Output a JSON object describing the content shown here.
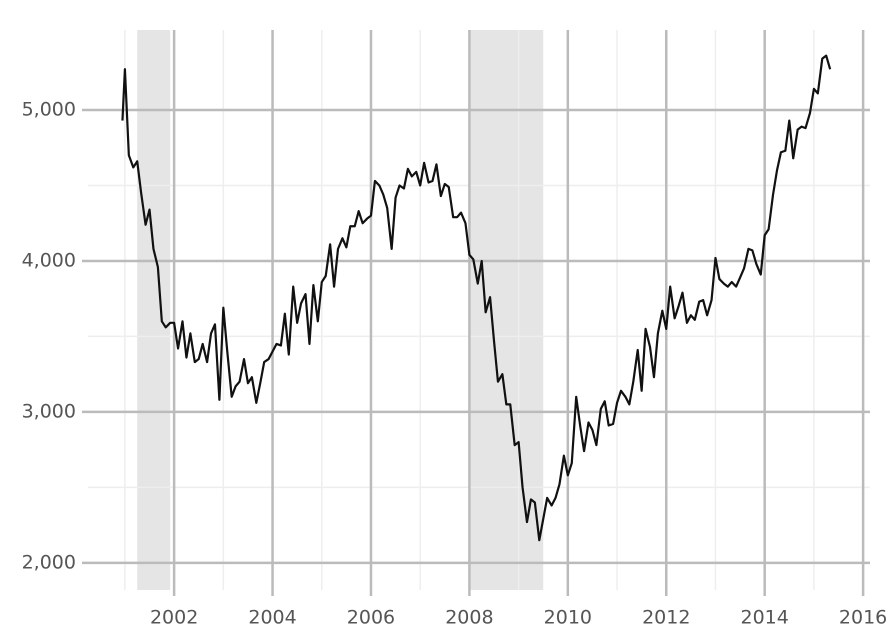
{
  "chart_data": {
    "type": "line",
    "x": [
      2000.95,
      2001.0,
      2001.08,
      2001.17,
      2001.25,
      2001.33,
      2001.42,
      2001.5,
      2001.58,
      2001.67,
      2001.75,
      2001.83,
      2001.92,
      2002.0,
      2002.08,
      2002.17,
      2002.25,
      2002.33,
      2002.42,
      2002.5,
      2002.58,
      2002.67,
      2002.75,
      2002.83,
      2002.92,
      2003.0,
      2003.08,
      2003.17,
      2003.25,
      2003.33,
      2003.42,
      2003.5,
      2003.58,
      2003.67,
      2003.75,
      2003.83,
      2003.92,
      2004.0,
      2004.08,
      2004.17,
      2004.25,
      2004.33,
      2004.42,
      2004.5,
      2004.58,
      2004.67,
      2004.75,
      2004.83,
      2004.92,
      2005.0,
      2005.08,
      2005.17,
      2005.25,
      2005.33,
      2005.42,
      2005.5,
      2005.58,
      2005.67,
      2005.75,
      2005.83,
      2005.92,
      2006.0,
      2006.08,
      2006.17,
      2006.25,
      2006.33,
      2006.42,
      2006.5,
      2006.58,
      2006.67,
      2006.75,
      2006.83,
      2006.92,
      2007.0,
      2007.08,
      2007.17,
      2007.25,
      2007.33,
      2007.42,
      2007.5,
      2007.58,
      2007.67,
      2007.75,
      2007.83,
      2007.92,
      2008.0,
      2008.08,
      2008.17,
      2008.25,
      2008.33,
      2008.42,
      2008.5,
      2008.58,
      2008.67,
      2008.75,
      2008.83,
      2008.92,
      2009.0,
      2009.08,
      2009.17,
      2009.25,
      2009.33,
      2009.42,
      2009.5,
      2009.58,
      2009.67,
      2009.75,
      2009.83,
      2009.92,
      2010.0,
      2010.08,
      2010.17,
      2010.25,
      2010.33,
      2010.42,
      2010.5,
      2010.58,
      2010.67,
      2010.75,
      2010.83,
      2010.92,
      2011.0,
      2011.08,
      2011.17,
      2011.25,
      2011.33,
      2011.42,
      2011.5,
      2011.58,
      2011.67,
      2011.75,
      2011.83,
      2011.92,
      2012.0,
      2012.08,
      2012.17,
      2012.25,
      2012.33,
      2012.42,
      2012.5,
      2012.58,
      2012.67,
      2012.75,
      2012.83,
      2012.92,
      2013.0,
      2013.08,
      2013.17,
      2013.25,
      2013.33,
      2013.42,
      2013.5,
      2013.58,
      2013.67,
      2013.75,
      2013.83,
      2013.92,
      2014.0,
      2014.08,
      2014.17,
      2014.25,
      2014.33,
      2014.42,
      2014.5,
      2014.58,
      2014.67,
      2014.75,
      2014.83,
      2014.92,
      2015.0,
      2015.08,
      2015.17,
      2015.25,
      2015.33
    ],
    "series": [
      {
        "color": "#111111",
        "values": [
          4930,
          5270,
          4700,
          4620,
          4660,
          4450,
          4240,
          4340,
          4080,
          3960,
          3600,
          3560,
          3590,
          3590,
          3420,
          3600,
          3360,
          3520,
          3330,
          3350,
          3450,
          3330,
          3520,
          3580,
          3080,
          3690,
          3400,
          3100,
          3170,
          3200,
          3350,
          3190,
          3230,
          3060,
          3190,
          3330,
          3350,
          3400,
          3450,
          3440,
          3650,
          3380,
          3830,
          3590,
          3720,
          3780,
          3450,
          3840,
          3600,
          3860,
          3900,
          4110,
          3830,
          4080,
          4150,
          4090,
          4230,
          4230,
          4330,
          4250,
          4280,
          4300,
          4530,
          4500,
          4440,
          4350,
          4080,
          4420,
          4500,
          4480,
          4610,
          4560,
          4590,
          4500,
          4650,
          4520,
          4530,
          4640,
          4430,
          4510,
          4490,
          4290,
          4290,
          4320,
          4250,
          4040,
          4010,
          3850,
          4000,
          3660,
          3760,
          3470,
          3200,
          3250,
          3050,
          3050,
          2780,
          2800,
          2500,
          2270,
          2420,
          2400,
          2150,
          2290,
          2430,
          2380,
          2430,
          2520,
          2710,
          2580,
          2660,
          3100,
          2910,
          2740,
          2930,
          2880,
          2780,
          3020,
          3070,
          2910,
          2920,
          3060,
          3140,
          3100,
          3050,
          3200,
          3410,
          3140,
          3550,
          3430,
          3230,
          3520,
          3670,
          3550,
          3830,
          3620,
          3700,
          3790,
          3590,
          3640,
          3610,
          3730,
          3740,
          3640,
          3740,
          4020,
          3880,
          3850,
          3830,
          3860,
          3830,
          3890,
          3950,
          4080,
          4070,
          3980,
          3910,
          4170,
          4210,
          4440,
          4600,
          4720,
          4730,
          4930,
          4680,
          4870,
          4890,
          4880,
          4980,
          5140,
          5110,
          5340,
          5360,
          5270
        ]
      }
    ],
    "shaded": [
      [
        2001.25,
        2001.92
      ],
      [
        2008.0,
        2009.5
      ]
    ],
    "shade_color": "#e5e5e5",
    "xlim": [
      2000.25,
      2016.14
    ],
    "xticks": [
      2002,
      2004,
      2006,
      2008,
      2010,
      2012,
      2014,
      2016
    ],
    "xminor": [
      2001,
      2003,
      2005,
      2007,
      2009,
      2011,
      2013,
      2015
    ],
    "ylim": [
      1820,
      5530
    ],
    "yticks": [
      {
        "value": 2000,
        "label": "2,000"
      },
      {
        "value": 3000,
        "label": "3,000"
      },
      {
        "value": 4000,
        "label": "4,000"
      },
      {
        "value": 5000,
        "label": "5,000"
      }
    ],
    "yminor": [
      2500,
      3500,
      4500
    ],
    "grid": true
  }
}
